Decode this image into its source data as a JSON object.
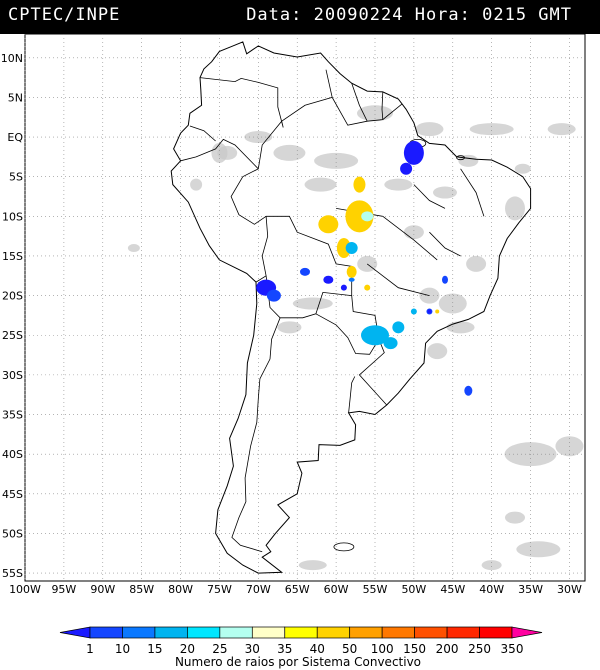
{
  "header": {
    "organization": "CPTEC/INPE",
    "datetime": "Data: 20090224 Hora: 0215 GMT"
  },
  "map": {
    "lat_labels": [
      "10N",
      "5N",
      "EQ",
      "5S",
      "10S",
      "15S",
      "20S",
      "25S",
      "30S",
      "35S",
      "40S",
      "45S",
      "50S",
      "55S"
    ],
    "lon_labels": [
      "100W",
      "95W",
      "90W",
      "85W",
      "80W",
      "75W",
      "70W",
      "65W",
      "60W",
      "55W",
      "50W",
      "45W",
      "40W",
      "35W",
      "30W"
    ],
    "lat_values": [
      10,
      5,
      0,
      -5,
      -10,
      -15,
      -20,
      -25,
      -30,
      -35,
      -40,
      -45,
      -50,
      -55
    ],
    "lon_values": [
      -100,
      -95,
      -90,
      -85,
      -80,
      -75,
      -70,
      -65,
      -60,
      -55,
      -50,
      -45,
      -40,
      -35,
      -30
    ],
    "extent": {
      "lon_min": -100,
      "lon_max": -28,
      "lat_min": -56,
      "lat_max": 13
    },
    "cloud_color": "#c8c8c8",
    "land_outline_color": "#000000",
    "grid": "dotted"
  },
  "colorbar": {
    "ticks": [
      "1",
      "10",
      "15",
      "20",
      "25",
      "30",
      "35",
      "40",
      "50",
      "100",
      "150",
      "200",
      "250",
      "350"
    ],
    "colors": [
      "#1a1aff",
      "#1446ff",
      "#0a78ff",
      "#00b4f0",
      "#00e6ff",
      "#b4fff0",
      "#ffffc8",
      "#ffff00",
      "#ffd200",
      "#ffa000",
      "#ff7800",
      "#ff5000",
      "#ff2800",
      "#ff0000",
      "#ff00a0"
    ],
    "title": "Numero de raios por Sistema Convectivo"
  }
}
